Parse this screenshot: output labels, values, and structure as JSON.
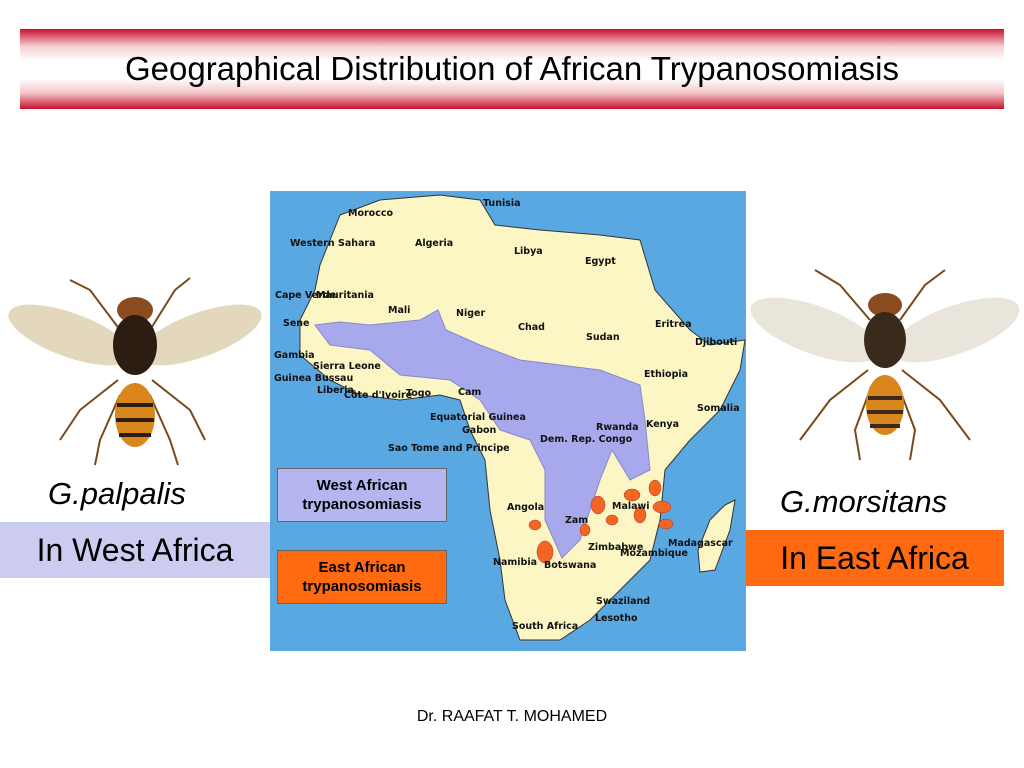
{
  "title": "Geographical Distribution of African Trypanosomiasis",
  "flies": [
    {
      "species": "G.palpalis",
      "region": "In West Africa"
    },
    {
      "species": "G.morsitans",
      "region": "In East Africa"
    }
  ],
  "map": {
    "labels": [
      "Tunisia",
      "Morocco",
      "Algeria",
      "Libya",
      "Egypt",
      "Western Sahara",
      "Mauritania",
      "Mali",
      "Niger",
      "Chad",
      "Sudan",
      "Eritrea",
      "Djibouti",
      "Cape Verde",
      "Sene",
      "Gambia",
      "Guinea Bussau",
      "Sierra Leone",
      "Liberia",
      "Côte d'Ivoire",
      "Togo",
      "Cam",
      "Ethiopia",
      "Somalia",
      "Kenya",
      "Equatorial Guinea",
      "Gabon",
      "Dem. Rep. Congo",
      "Rwanda",
      "Sao Tome and Principe",
      "Angola",
      "Zam",
      "Malawi",
      "Zimbabwe",
      "Mozambique",
      "Madagascar",
      "Namibia",
      "Botswana",
      "Swaziland",
      "Lesotho",
      "South Africa"
    ],
    "legend": [
      "West African trypanosomiasis",
      "East African trypanosomiasis"
    ]
  },
  "footer": "Dr. RAAFAT T. MOHAMED"
}
